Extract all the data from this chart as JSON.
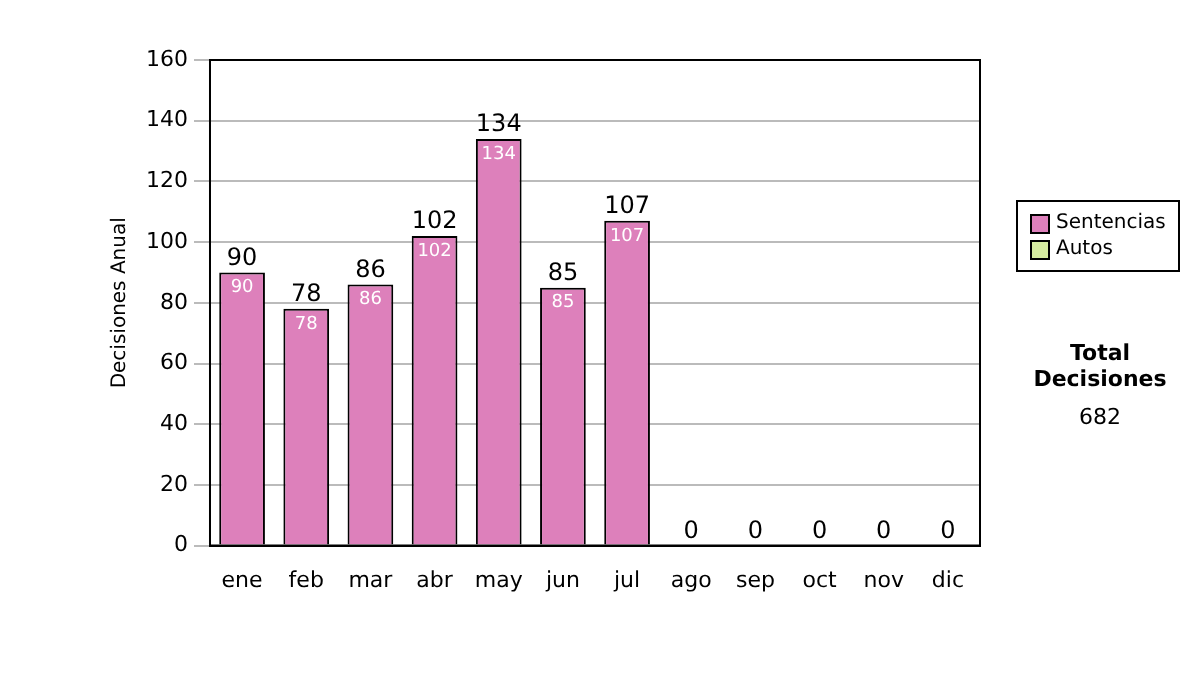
{
  "chart_data": {
    "type": "bar",
    "stacked": true,
    "ylabel": "Decisiones Anual",
    "categories": [
      "ene",
      "feb",
      "mar",
      "abr",
      "may",
      "jun",
      "jul",
      "ago",
      "sep",
      "oct",
      "nov",
      "dic"
    ],
    "series": [
      {
        "name": "Sentencias",
        "color": "#dd80bb",
        "values": [
          90,
          78,
          86,
          102,
          134,
          85,
          107,
          0,
          0,
          0,
          0,
          0
        ],
        "value_labels": [
          "90",
          "78",
          "86",
          "102",
          "134",
          "85",
          "107",
          null,
          null,
          null,
          null,
          null
        ]
      },
      {
        "name": "Autos",
        "color": "#d6eca0",
        "values": [
          0,
          0,
          0,
          0,
          0,
          0,
          0,
          0,
          0,
          0,
          0,
          0
        ]
      }
    ],
    "totals": [
      "90",
      "78",
      "86",
      "102",
      "134",
      "85",
      "107",
      "0",
      "0",
      "0",
      "0",
      "0"
    ],
    "ylim": [
      0,
      160
    ],
    "yticks": [
      0,
      20,
      40,
      60,
      80,
      100,
      120,
      140,
      160
    ],
    "grid": "y",
    "legend": "right",
    "annotations": [
      "Total Decisiones",
      "682"
    ]
  }
}
